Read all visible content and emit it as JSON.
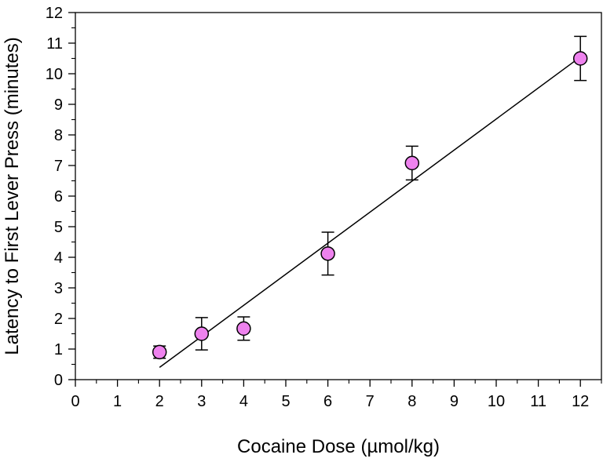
{
  "chart_data": {
    "type": "scatter",
    "title": "",
    "xlabel": "Cocaine Dose (µmol/kg)",
    "ylabel": "Latency to First Lever Press (minutes)",
    "xlim": [
      0,
      12.5
    ],
    "ylim": [
      0,
      12
    ],
    "xticks": [
      0,
      1,
      2,
      3,
      4,
      5,
      6,
      7,
      8,
      9,
      10,
      11,
      12
    ],
    "yticks": [
      0,
      1,
      2,
      3,
      4,
      5,
      6,
      7,
      8,
      9,
      10,
      11,
      12
    ],
    "grid": false,
    "legend": "none",
    "marker_color": "#ee82ee",
    "series": [
      {
        "points": [
          {
            "x": 2,
            "y": 0.9,
            "err_low": 0.2,
            "err_high": 0.2
          },
          {
            "x": 3,
            "y": 1.5,
            "err_low": 0.53,
            "err_high": 0.53
          },
          {
            "x": 4,
            "y": 1.67,
            "err_low": 0.38,
            "err_high": 0.38
          },
          {
            "x": 6,
            "y": 4.12,
            "err_low": 0.7,
            "err_high": 0.7
          },
          {
            "x": 8,
            "y": 7.08,
            "err_low": 0.55,
            "err_high": 0.55
          },
          {
            "x": 12,
            "y": 10.5,
            "err_low": 0.72,
            "err_high": 0.72
          }
        ]
      }
    ],
    "fit_line": {
      "x": [
        2,
        12
      ],
      "y": [
        0.4,
        10.55
      ]
    }
  }
}
